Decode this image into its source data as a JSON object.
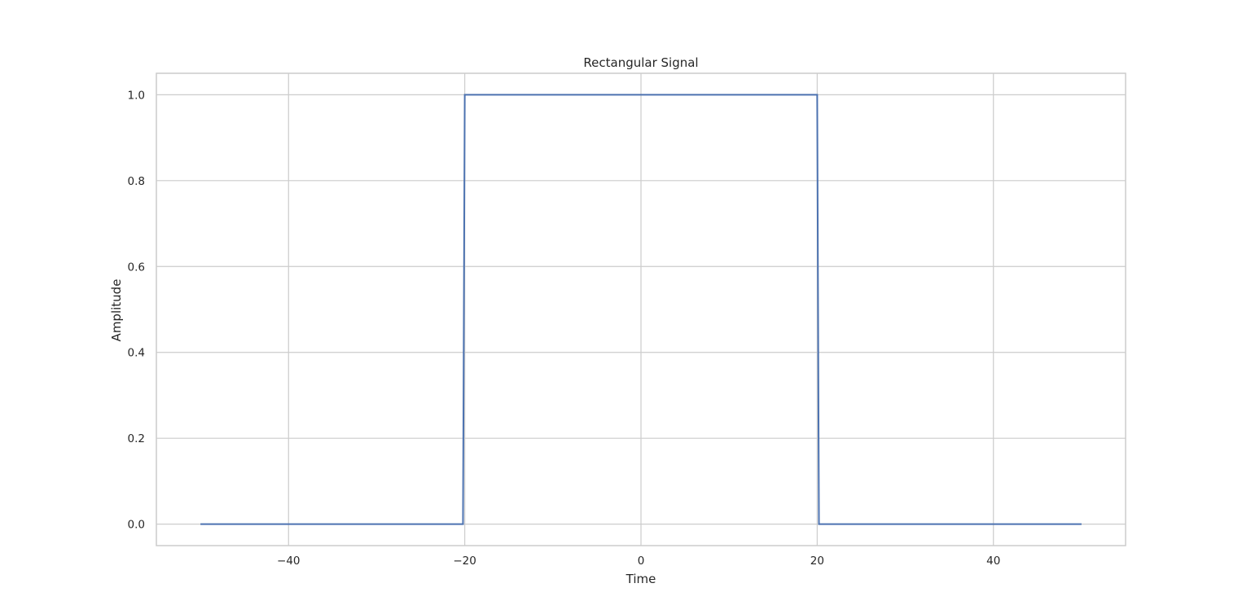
{
  "chart_data": {
    "type": "line",
    "title": "Rectangular Signal",
    "xlabel": "Time",
    "ylabel": "Amplitude",
    "xlim": [
      -55,
      55
    ],
    "ylim": [
      -0.05,
      1.05
    ],
    "xticks": [
      -40,
      -20,
      0,
      20,
      40
    ],
    "yticks": [
      0.0,
      0.2,
      0.4,
      0.6,
      0.8,
      1.0
    ],
    "xtick_labels": [
      "−40",
      "−20",
      "0",
      "20",
      "40"
    ],
    "ytick_labels": [
      "0.0",
      "0.2",
      "0.4",
      "0.6",
      "0.8",
      "1.0"
    ],
    "grid": true,
    "series": [
      {
        "color": "#4c72b0",
        "x": [
          -50,
          -20.2,
          -20,
          20,
          20.2,
          50
        ],
        "y": [
          0,
          0,
          1,
          1,
          0,
          0
        ]
      }
    ]
  }
}
